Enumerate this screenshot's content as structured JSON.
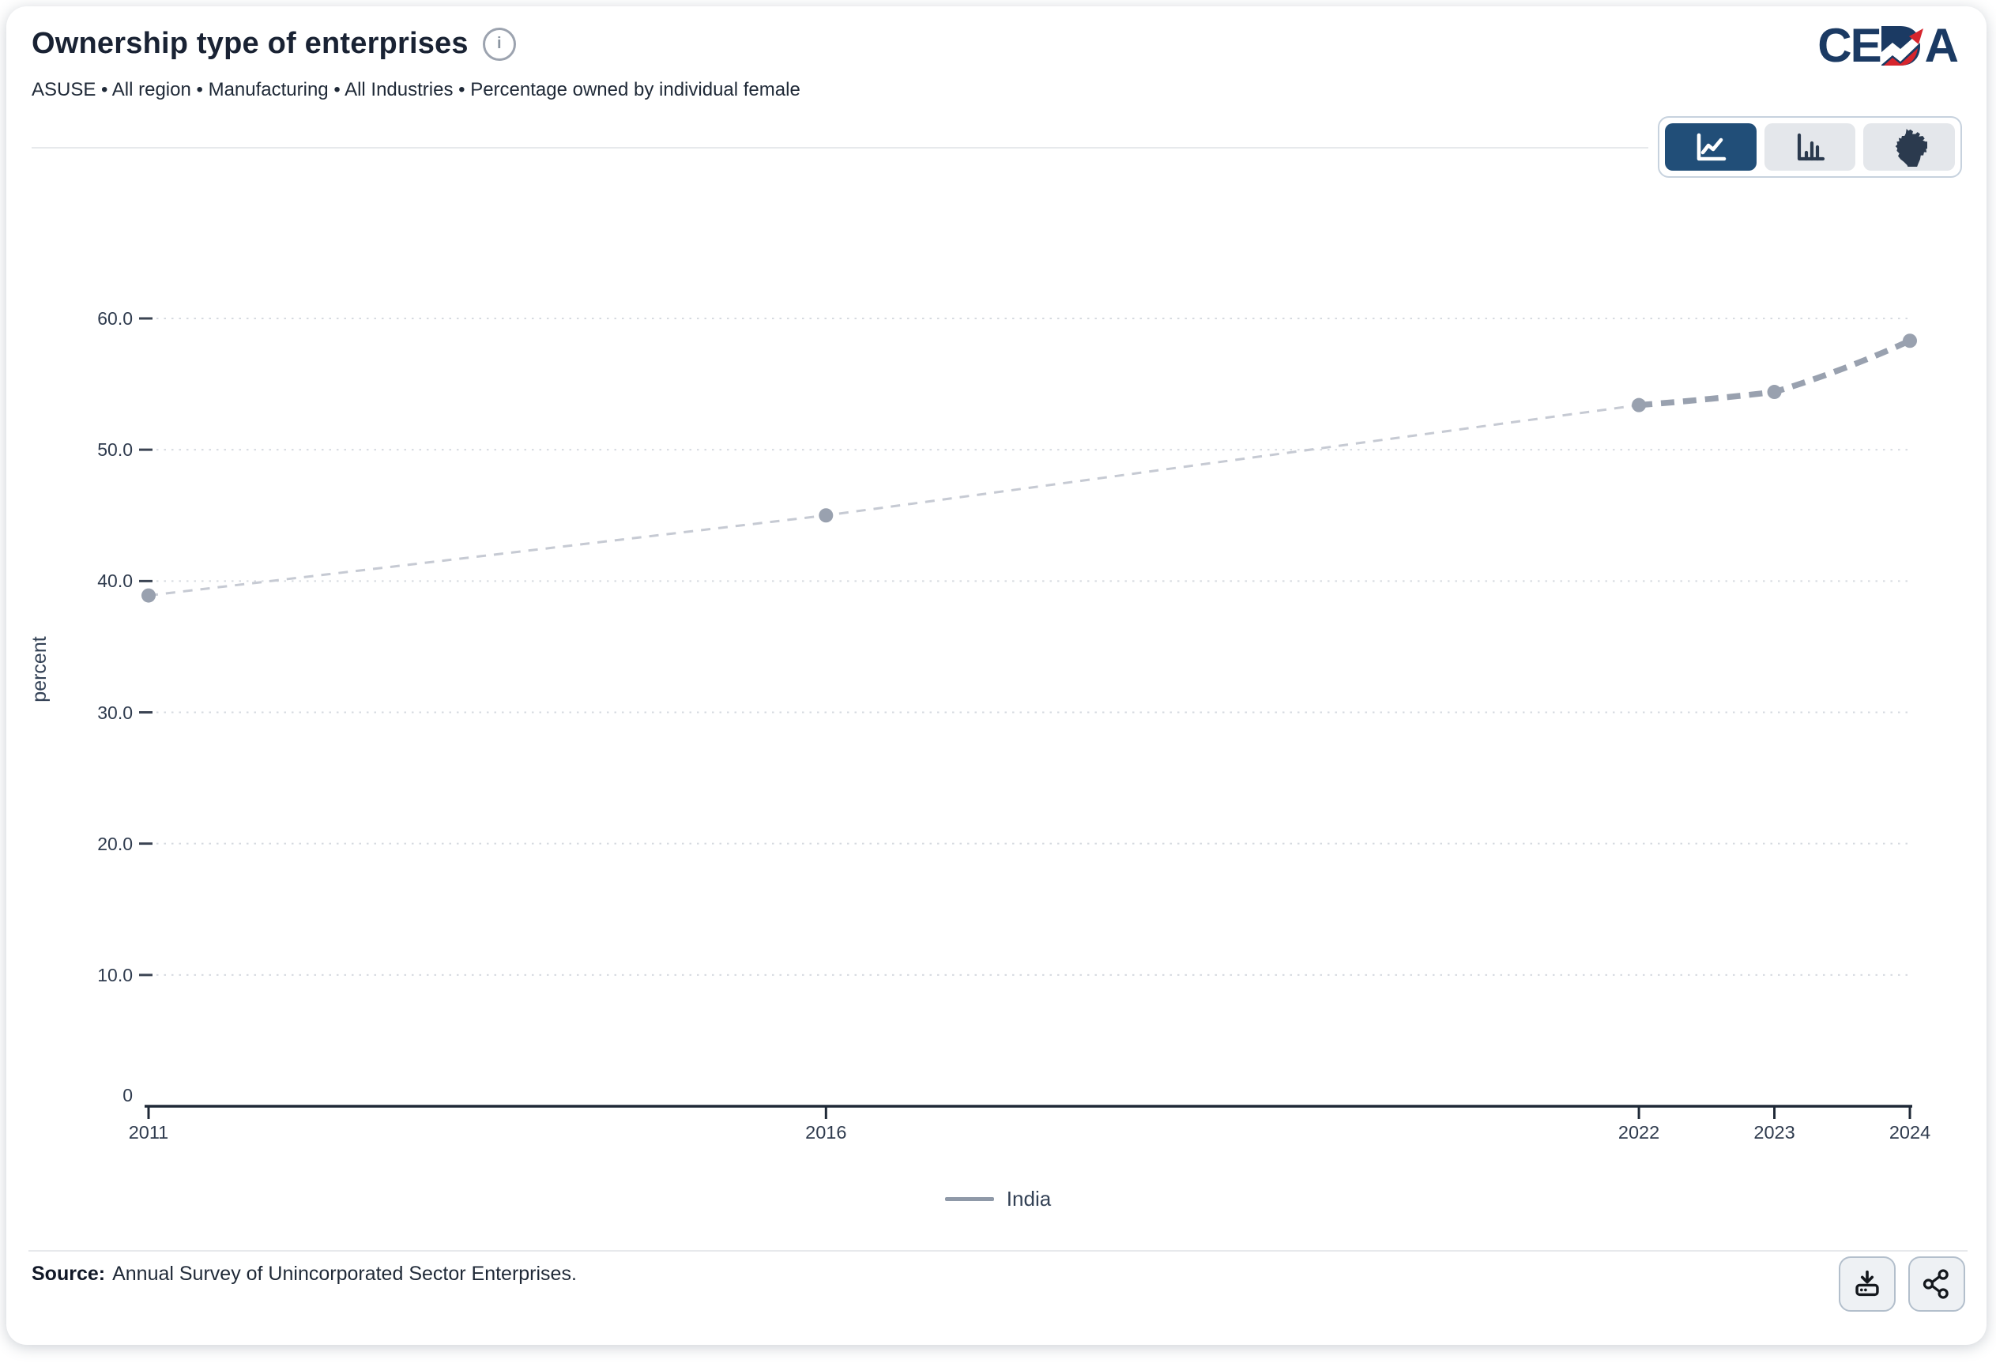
{
  "header": {
    "title": "Ownership type of enterprises",
    "info_glyph": "i",
    "subtitle": "ASUSE • All region • Manufacturing • All Industries • Percentage owned by individual female"
  },
  "logo": {
    "text_left": "CE",
    "text_right": "A",
    "full_text": "CEDA"
  },
  "toolbar": {
    "buttons": [
      {
        "id": "line-chart",
        "active": true
      },
      {
        "id": "bar-chart",
        "active": false
      },
      {
        "id": "india-map",
        "active": false
      }
    ]
  },
  "chart_data": {
    "type": "line",
    "title": "Ownership type of enterprises",
    "xlabel": "",
    "ylabel": "percent",
    "x": [
      2011,
      2016,
      2022,
      2023,
      2024
    ],
    "series": [
      {
        "name": "India",
        "values": [
          38.9,
          45.0,
          53.4,
          54.4,
          58.3
        ]
      }
    ],
    "xlim": [
      2011,
      2024
    ],
    "ylim": [
      0,
      65
    ],
    "yticks": [
      {
        "v": 0,
        "label": "0"
      },
      {
        "v": 10,
        "label": "10.0"
      },
      {
        "v": 20,
        "label": "20.0"
      },
      {
        "v": 30,
        "label": "30.0"
      },
      {
        "v": 40,
        "label": "40.0"
      },
      {
        "v": 50,
        "label": "50.0"
      },
      {
        "v": 60,
        "label": "60.0"
      }
    ],
    "xticks": [
      {
        "v": 2011,
        "label": "2011"
      },
      {
        "v": 2016,
        "label": "2016"
      },
      {
        "v": 2022,
        "label": "2022"
      },
      {
        "v": 2023,
        "label": "2023"
      },
      {
        "v": 2024,
        "label": "2024"
      }
    ],
    "grid": "horizontal dotted",
    "legend_position": "bottom-center",
    "line_style_note": "dashed line with round markers; 2011-2022 thin light dashes, 2022-2024 thick dashes"
  },
  "legend": {
    "items": [
      {
        "label": "India",
        "swatch_color": "#8f99a8"
      }
    ]
  },
  "footer": {
    "source_label": "Source:",
    "source_text": "Annual Survey of Unincorporated Sector Enterprises.",
    "buttons": [
      {
        "id": "download"
      },
      {
        "id": "share"
      }
    ]
  },
  "colors": {
    "accent": "#214e78",
    "logo-navy": "#1b3a63",
    "logo-red": "#d6252d",
    "axis": "#1f2937",
    "grid": "#d6dae0",
    "line-thin": "#c6cad3",
    "line-bold": "#99a1af",
    "point": "#99a1af",
    "text-dark": "#192233",
    "text-body": "#1f2937"
  }
}
